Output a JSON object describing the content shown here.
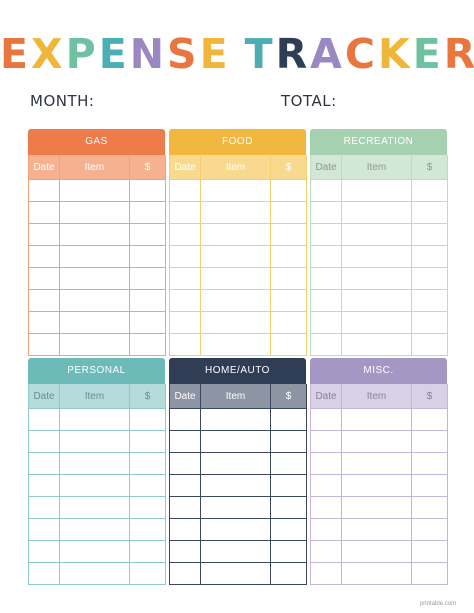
{
  "title": {
    "letters": [
      {
        "ch": "E",
        "color": "#e8763f"
      },
      {
        "ch": "X",
        "color": "#f0b63a"
      },
      {
        "ch": "P",
        "color": "#6fc2a1"
      },
      {
        "ch": "E",
        "color": "#4aaeb4"
      },
      {
        "ch": "N",
        "color": "#9b87c2"
      },
      {
        "ch": "S",
        "color": "#e8763f"
      },
      {
        "ch": "E",
        "color": "#f0b63a"
      },
      {
        "ch": " ",
        "color": "#ffffff"
      },
      {
        "ch": "T",
        "color": "#4aaeb4"
      },
      {
        "ch": "R",
        "color": "#2e3e55"
      },
      {
        "ch": "A",
        "color": "#9b87c2"
      },
      {
        "ch": "C",
        "color": "#e8763f"
      },
      {
        "ch": "K",
        "color": "#f0b63a"
      },
      {
        "ch": "E",
        "color": "#6fc2a1"
      },
      {
        "ch": "R",
        "color": "#e8763f"
      }
    ]
  },
  "fields": {
    "month_label": "MONTH:",
    "total_label": "TOTAL:"
  },
  "columns": {
    "date": "Date",
    "item": "Item",
    "amount": "$"
  },
  "categories": [
    {
      "name": "GAS",
      "header_color": "#ee7b4a",
      "sub_color": "#f6b190",
      "border_color": "#f2a07e",
      "sub_text": "#ffffff"
    },
    {
      "name": "FOOD",
      "header_color": "#f2b73e",
      "sub_color": "#f8d98e",
      "border_color": "#f4cf74",
      "sub_text": "#ffffff"
    },
    {
      "name": "RECREATION",
      "header_color": "#a5d1b0",
      "sub_color": "#d2e7d6",
      "border_color": "#bcdcc4",
      "sub_text": "#8a9a8e"
    },
    {
      "name": "PERSONAL",
      "header_color": "#6cbbb8",
      "sub_color": "#b3dcda",
      "border_color": "#8ecbc8",
      "sub_text": "#6b8f8d"
    },
    {
      "name": "HOME/AUTO",
      "header_color": "#2f3d55",
      "sub_color": "#8d94a3",
      "border_color": "#3b475d",
      "sub_text": "#ffffff"
    },
    {
      "name": "MISC.",
      "header_color": "#a597c4",
      "sub_color": "#d8d0e4",
      "border_color": "#c2b7d8",
      "sub_text": "#8a8299"
    }
  ],
  "rows_per_block": 8,
  "watermark": "printable.com"
}
